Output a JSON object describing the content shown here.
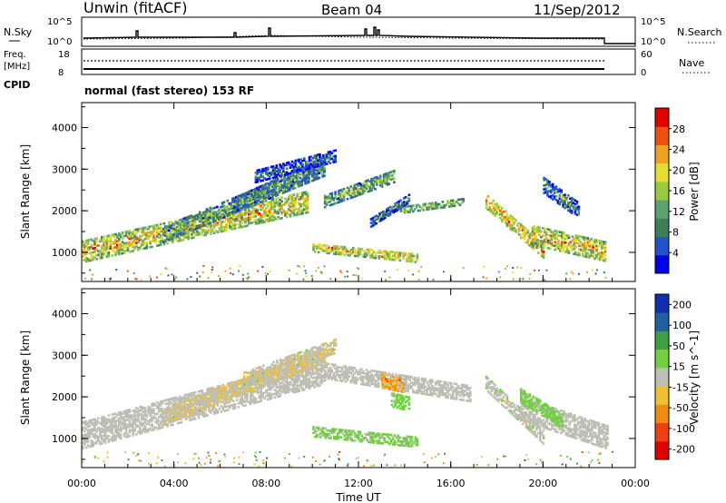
{
  "header": {
    "site": "Unwin (fitACF)",
    "beam": "Beam 04",
    "date": "11/Sep/2012"
  },
  "top_panels": {
    "nsky_label": "N.Sky",
    "nsearch_label": "N.Search",
    "nsky_ticks": [
      "10^5",
      "10^0"
    ],
    "nsearch_ticks": [
      "10^5",
      "10^0"
    ],
    "freq_label": "Freq.",
    "freq_unit": "[MHz]",
    "freq_ticks": [
      "18",
      "8"
    ],
    "nave_label": "Nave",
    "nave_ticks": [
      "60",
      "0"
    ],
    "cpid_label": "CPID",
    "cpid_text": "normal (fast stereo) 153 RF"
  },
  "colors": {
    "power": [
      "#0000ee",
      "#2255cc",
      "#3e7f55",
      "#5fa070",
      "#9ac840",
      "#e6dc30",
      "#f0a020",
      "#ee5010",
      "#e00000"
    ],
    "velocity": [
      "#e00000",
      "#ee4010",
      "#f08c10",
      "#f0c030",
      "#bebeb4",
      "#70d040",
      "#3ea040",
      "#2060a0",
      "#1030b0"
    ]
  },
  "chart_data": [
    {
      "type": "heatmap",
      "parameter": "power",
      "ylabel": "Slant Range [km]",
      "ylim": [
        300,
        4600
      ],
      "yticks": [
        "1000",
        "2000",
        "3000",
        "4000"
      ],
      "xlim": [
        0,
        24
      ],
      "colorbar": {
        "label": "Power [dB]",
        "ticks": [
          "4",
          "8",
          "12",
          "16",
          "20",
          "24",
          "28"
        ],
        "range": [
          0,
          32
        ]
      },
      "bands": [
        {
          "t0": 0.0,
          "t1": 9.8,
          "r0": 1000,
          "r1": 2200,
          "w": 260,
          "v": 20,
          "spread": 8
        },
        {
          "t0": 3.5,
          "t1": 10.5,
          "r0": 1400,
          "r1": 3000,
          "w": 180,
          "v": 14,
          "spread": 7
        },
        {
          "t0": 6.5,
          "t1": 10.5,
          "r0": 2100,
          "r1": 3100,
          "w": 160,
          "v": 12,
          "spread": 7
        },
        {
          "t0": 7.5,
          "t1": 11.0,
          "r0": 2800,
          "r1": 3300,
          "w": 140,
          "v": 8,
          "spread": 6
        },
        {
          "t0": 10.5,
          "t1": 13.5,
          "r0": 2200,
          "r1": 2800,
          "w": 140,
          "v": 14,
          "spread": 7
        },
        {
          "t0": 12.5,
          "t1": 14.2,
          "r0": 1700,
          "r1": 2300,
          "w": 110,
          "v": 10,
          "spread": 6
        },
        {
          "t0": 10.0,
          "t1": 14.5,
          "r0": 1100,
          "r1": 850,
          "w": 110,
          "v": 20,
          "spread": 7
        },
        {
          "t0": 13.8,
          "t1": 16.5,
          "r0": 2000,
          "r1": 2200,
          "w": 80,
          "v": 16,
          "spread": 5
        },
        {
          "t0": 17.5,
          "t1": 20.0,
          "r0": 2200,
          "r1": 1000,
          "w": 160,
          "v": 22,
          "spread": 8
        },
        {
          "t0": 19.5,
          "t1": 22.7,
          "r0": 1400,
          "r1": 1000,
          "w": 240,
          "v": 20,
          "spread": 8
        },
        {
          "t0": 20.0,
          "t1": 21.5,
          "r0": 2600,
          "r1": 2000,
          "w": 200,
          "v": 10,
          "spread": 6
        }
      ]
    },
    {
      "type": "heatmap",
      "parameter": "velocity",
      "ylabel": "Slant Range [km]",
      "ylim": [
        300,
        4600
      ],
      "yticks": [
        "1000",
        "2000",
        "3000",
        "4000"
      ],
      "xlabel": "Time UT",
      "xlim": [
        0,
        24
      ],
      "xticks": [
        "00:00",
        "04:00",
        "08:00",
        "12:00",
        "16:00",
        "20:00",
        "00:00"
      ],
      "colorbar": {
        "label": "Velocity [m s^-1]",
        "ticks": [
          "-200",
          "-100",
          "-50",
          "-15",
          "15",
          "50",
          "100",
          "200"
        ],
        "range": [
          -250,
          250
        ]
      },
      "bands": [
        {
          "t0": 0.0,
          "t1": 10.5,
          "r0": 1050,
          "r1": 2600,
          "w": 320,
          "v": 0,
          "spread": 12
        },
        {
          "t0": 3.5,
          "t1": 10.5,
          "r0": 1500,
          "r1": 3000,
          "w": 200,
          "v": -20,
          "spread": 30
        },
        {
          "t0": 7.0,
          "t1": 11.0,
          "r0": 2400,
          "r1": 3200,
          "w": 160,
          "v": -15,
          "spread": 35
        },
        {
          "t0": 10.5,
          "t1": 16.8,
          "r0": 2600,
          "r1": 2050,
          "w": 180,
          "v": 0,
          "spread": 10
        },
        {
          "t0": 13.0,
          "t1": 13.9,
          "r0": 2350,
          "r1": 2250,
          "w": 160,
          "v": -90,
          "spread": 60
        },
        {
          "t0": 13.4,
          "t1": 14.2,
          "r0": 1900,
          "r1": 1800,
          "w": 160,
          "v": 45,
          "spread": 15
        },
        {
          "t0": 10.0,
          "t1": 14.5,
          "r0": 1150,
          "r1": 900,
          "w": 130,
          "v": 40,
          "spread": 20
        },
        {
          "t0": 17.5,
          "t1": 20.0,
          "r0": 2300,
          "r1": 1000,
          "w": 160,
          "v": 5,
          "spread": 25
        },
        {
          "t0": 19.0,
          "t1": 22.8,
          "r0": 1700,
          "r1": 1000,
          "w": 280,
          "v": 0,
          "spread": 12
        },
        {
          "t0": 19.0,
          "t1": 20.8,
          "r0": 2000,
          "r1": 1400,
          "w": 160,
          "v": 40,
          "spread": 15
        }
      ]
    }
  ]
}
